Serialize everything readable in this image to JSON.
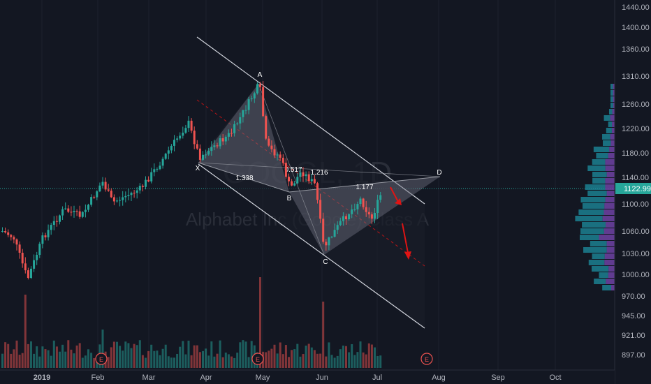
{
  "chart_data": {
    "type": "candlestick",
    "watermark": {
      "symbol": "GOOGL, 1D",
      "name": "Alphabet Inc (Google) Class A"
    },
    "last_price": "1122.99",
    "price_ticks": [
      "1440.00",
      "1400.00",
      "1360.00",
      "1310.00",
      "1260.00",
      "1220.00",
      "1180.00",
      "1140.00",
      "1100.00",
      "1060.00",
      "1030.00",
      "1000.00",
      "970.00",
      "945.00",
      "921.00",
      "897.00"
    ],
    "time_ticks": [
      "2019",
      "Feb",
      "Mar",
      "Apr",
      "May",
      "Jun",
      "Jul",
      "Aug",
      "Sep",
      "Oct"
    ],
    "pattern_points": [
      "X",
      "A",
      "B",
      "C",
      "D"
    ],
    "ratios": [
      "1.338",
      "0.517",
      "1.216",
      "1.177"
    ],
    "earnings_marker": "E",
    "colors": {
      "up": "#26a69a",
      "down": "#ef5350",
      "background": "#131722",
      "pattern": "#9598a1",
      "arrow": "#e01414"
    }
  }
}
